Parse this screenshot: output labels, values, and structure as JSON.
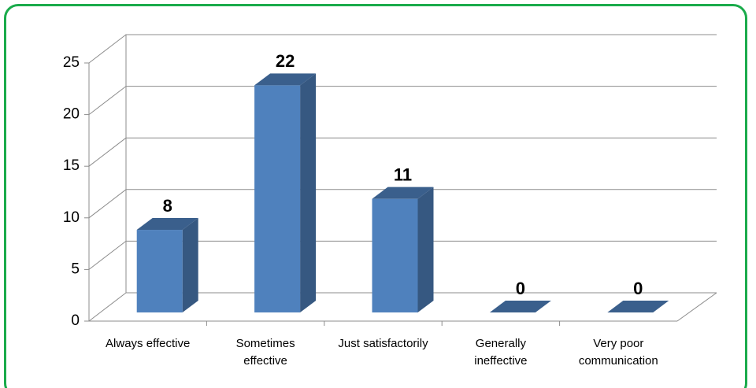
{
  "chart_data": {
    "type": "bar3d",
    "categories": [
      "Always effective",
      "Sometimes effective",
      "Just satisfactorily",
      "Generally ineffective",
      "Very poor communication"
    ],
    "values": [
      8,
      22,
      11,
      0,
      0
    ],
    "color": "#4f81bd",
    "ylim": [
      0,
      25
    ],
    "yticks": [
      0,
      5,
      10,
      15,
      20,
      25
    ],
    "grid": true
  }
}
